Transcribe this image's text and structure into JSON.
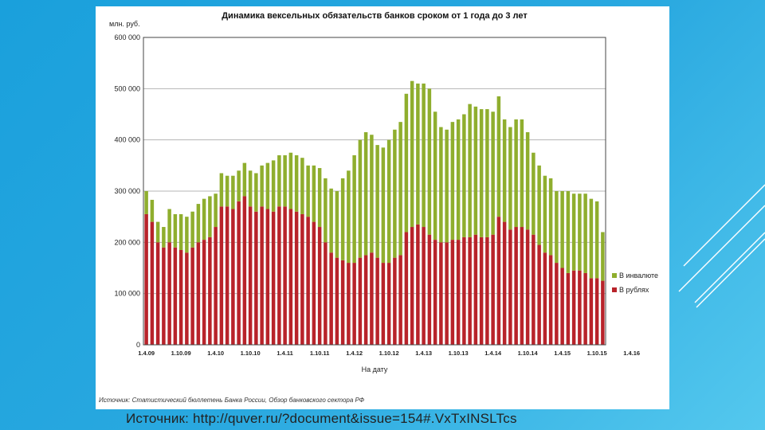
{
  "slide": {
    "source_caption": "Источник: http://quver.ru/?document&issue=154#.VxTxINSLTcs"
  },
  "colors": {
    "rub": "#b8232a",
    "fx": "#8fae2e",
    "grid": "#b5b5b5",
    "plot_border": "#444444",
    "background_top": "#1aa0dc",
    "background_bottom": "#54c8ee"
  },
  "chart_data": {
    "type": "bar",
    "stacked": true,
    "title": "Динамика вексельных обязательств банков сроком от 1 года до 3 лет",
    "ylabel": "млн. руб.",
    "xlabel": "На дату",
    "ylim": [
      0,
      600000
    ],
    "yticks": [
      0,
      100000,
      200000,
      300000,
      400000,
      500000,
      600000
    ],
    "ytick_labels": [
      "0",
      "100 000",
      "200 000",
      "300 000",
      "400 000",
      "500 000",
      "600 000"
    ],
    "xtick_labels": [
      "1.4.09",
      "1.10.09",
      "1.4.10",
      "1.10.10",
      "1.4.11",
      "1.10.11",
      "1.4.12",
      "1.10.12",
      "1.4.13",
      "1.10.13",
      "1.4.14",
      "1.10.14",
      "1.4.15",
      "1.10.15",
      "1.4.16"
    ],
    "legend_position": "right",
    "source_note": "Источник: Статистический бюллетень Банка России, Обзор банковского сектора РФ",
    "series": [
      {
        "name": "В инвалюте",
        "key": "fx",
        "values": [
          45000,
          43000,
          40000,
          40000,
          65000,
          65000,
          70000,
          70000,
          70000,
          75000,
          80000,
          80000,
          65000,
          65000,
          60000,
          65000,
          60000,
          65000,
          70000,
          75000,
          80000,
          90000,
          100000,
          100000,
          100000,
          110000,
          110000,
          110000,
          100000,
          110000,
          115000,
          125000,
          125000,
          130000,
          160000,
          180000,
          210000,
          230000,
          240000,
          230000,
          220000,
          225000,
          240000,
          250000,
          260000,
          270000,
          285000,
          275000,
          280000,
          285000,
          250000,
          225000,
          220000,
          230000,
          235000,
          240000,
          260000,
          250000,
          250000,
          250000,
          240000,
          235000,
          200000,
          200000,
          210000,
          210000,
          190000,
          160000,
          155000,
          150000,
          150000,
          140000,
          150000,
          160000,
          150000,
          150000,
          155000,
          155000,
          150000,
          95000
        ],
        "color": "#8fae2e"
      },
      {
        "name": "В рублях",
        "key": "rub",
        "values": [
          255000,
          240000,
          200000,
          190000,
          200000,
          190000,
          185000,
          180000,
          190000,
          200000,
          205000,
          210000,
          230000,
          270000,
          270000,
          265000,
          280000,
          290000,
          270000,
          260000,
          270000,
          265000,
          260000,
          270000,
          270000,
          265000,
          260000,
          255000,
          250000,
          240000,
          230000,
          200000,
          180000,
          170000,
          165000,
          160000,
          160000,
          170000,
          175000,
          180000,
          170000,
          160000,
          160000,
          170000,
          175000,
          220000,
          230000,
          235000,
          230000,
          215000,
          205000,
          200000,
          200000,
          205000,
          205000,
          210000,
          210000,
          215000,
          210000,
          210000,
          215000,
          250000,
          240000,
          225000,
          230000,
          230000,
          225000,
          215000,
          195000,
          180000,
          175000,
          160000,
          150000,
          140000,
          145000,
          145000,
          140000,
          130000,
          130000,
          125000
        ],
        "color": "#b8232a"
      }
    ]
  }
}
